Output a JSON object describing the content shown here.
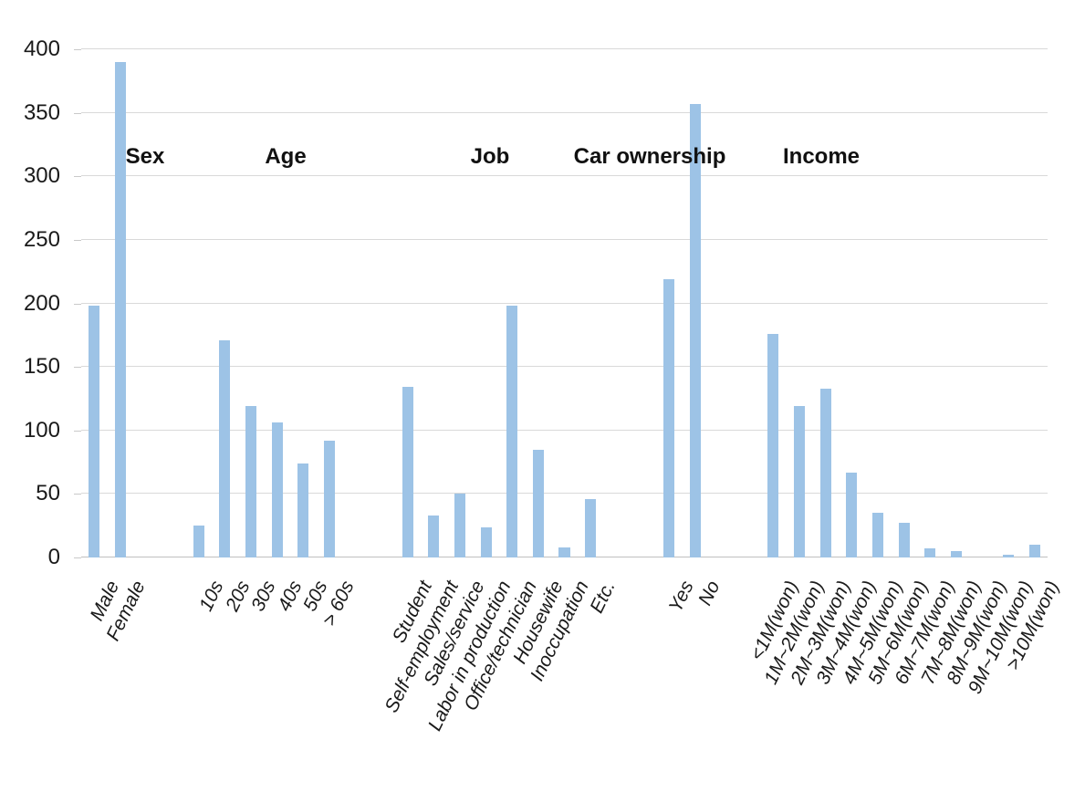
{
  "chart_data": {
    "type": "bar",
    "title": "",
    "xlabel": "",
    "ylabel": "",
    "ylim": [
      0,
      400
    ],
    "yticks": [
      0,
      50,
      100,
      150,
      200,
      250,
      300,
      350,
      400
    ],
    "grid": true,
    "legend": false,
    "bar_color": "#9DC3E6",
    "gridline_color": "#d9d9d9",
    "groups": [
      {
        "label": "Sex",
        "categories": [
          "Male",
          "Female"
        ],
        "values": [
          198,
          390
        ]
      },
      {
        "label": "Age",
        "categories": [
          "10s",
          "20s",
          "30s",
          "40s",
          "50s",
          "> 60s"
        ],
        "values": [
          25,
          171,
          119,
          106,
          74,
          92
        ]
      },
      {
        "label": "Job",
        "categories": [
          "Student",
          "Self-employment",
          "Sales/service",
          "Labor in production",
          "Office/technician",
          "Housewife",
          "Inoccupation",
          "Etc."
        ],
        "values": [
          134,
          33,
          50,
          24,
          198,
          85,
          8,
          46
        ]
      },
      {
        "label": "Car ownership",
        "categories": [
          "Yes",
          "No"
        ],
        "values": [
          219,
          357
        ]
      },
      {
        "label": "Income",
        "categories": [
          "<1M(won)",
          "1M~2M(won)",
          "2M~3M(won)",
          "3M~4M(won)",
          "4M~5M(won)",
          "5M~6M(won)",
          "6M~7M(won)",
          "7M~8M(won)",
          "8M~9M(won)",
          "9M~10M(won)",
          ">10M(won)"
        ],
        "values": [
          176,
          119,
          133,
          67,
          35,
          27,
          7,
          5,
          0,
          2,
          10
        ]
      }
    ]
  }
}
